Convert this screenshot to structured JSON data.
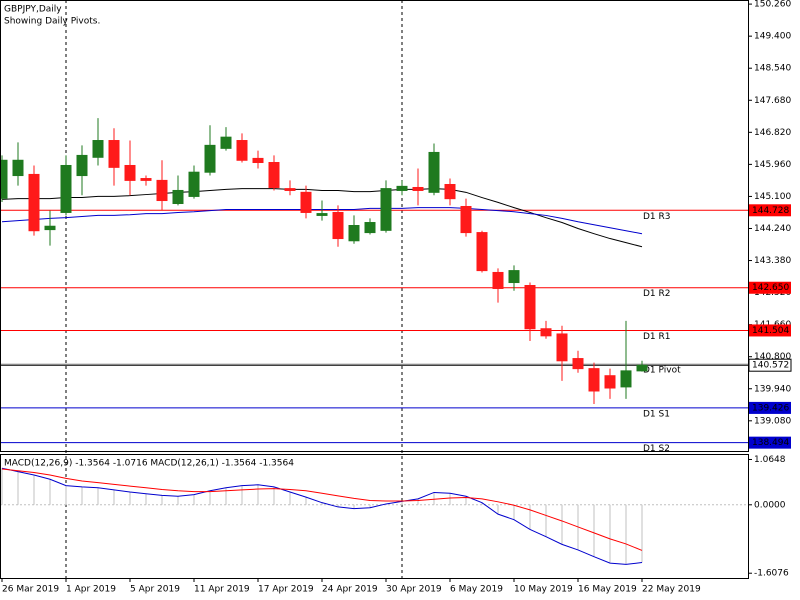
{
  "chart_data": [
    {
      "type": "candlestick",
      "title": "GBPJPY,Daily",
      "subtitle": "Showing Daily Pivots.",
      "categories": [
        "26 Mar 2019",
        null,
        null,
        null,
        "1 Apr 2019",
        null,
        null,
        null,
        "5 Apr 2019",
        null,
        null,
        null,
        "11 Apr 2019",
        null,
        null,
        null,
        "17 Apr 2019",
        null,
        null,
        null,
        "24 Apr 2019",
        null,
        null,
        null,
        "30 Apr 2019",
        null,
        null,
        null,
        "6 May 2019",
        null,
        null,
        null,
        "10 May 2019",
        null,
        null,
        null,
        "16 May 2019",
        null,
        null,
        null,
        "22 May 2019"
      ],
      "open": [
        145.05,
        145.66,
        145.69,
        144.21,
        144.67,
        145.66,
        146.15,
        146.6,
        145.93,
        145.58,
        145.53,
        144.91,
        145.1,
        145.75,
        146.39,
        146.6,
        146.12,
        146.01,
        145.31,
        145.21,
        144.59,
        144.67,
        143.91,
        144.13,
        144.19,
        145.26,
        145.34,
        145.21,
        145.42,
        144.83,
        144.13,
        143.06,
        142.79,
        142.71,
        141.55,
        141.41,
        140.75,
        140.48,
        140.29,
        139.99,
        140.42
      ],
      "high": [
        146.2,
        146.55,
        145.93,
        144.72,
        146.2,
        146.47,
        147.2,
        146.93,
        146.6,
        145.66,
        146.07,
        145.66,
        145.93,
        147.01,
        146.96,
        146.79,
        146.33,
        146.2,
        145.53,
        145.39,
        144.99,
        144.86,
        144.59,
        144.51,
        145.53,
        145.53,
        145.85,
        146.52,
        145.58,
        145.04,
        144.18,
        143.17,
        143.25,
        142.79,
        141.76,
        141.63,
        140.96,
        140.64,
        140.48,
        141.76,
        140.69
      ],
      "low": [
        144.95,
        145.39,
        144.05,
        143.78,
        144.59,
        145.13,
        145.93,
        145.39,
        145.13,
        145.39,
        144.72,
        144.86,
        145.04,
        145.66,
        146.33,
        146.01,
        145.85,
        145.26,
        145.13,
        144.51,
        144.45,
        143.75,
        143.83,
        144.08,
        144.13,
        145.13,
        144.86,
        145.13,
        144.86,
        144.02,
        143.06,
        142.25,
        142.57,
        141.22,
        141.28,
        140.15,
        140.37,
        139.53,
        139.67,
        139.67,
        140.4
      ],
      "close": [
        146.07,
        146.07,
        144.18,
        144.3,
        145.93,
        146.2,
        146.6,
        145.88,
        145.53,
        145.53,
        144.99,
        145.26,
        145.75,
        146.47,
        146.69,
        146.07,
        146.01,
        145.34,
        145.26,
        144.67,
        144.64,
        143.97,
        144.32,
        144.4,
        145.31,
        145.37,
        145.26,
        146.28,
        145.04,
        144.13,
        143.11,
        142.63,
        143.11,
        141.55,
        141.36,
        140.69,
        140.48,
        139.88,
        139.96,
        140.42,
        140.57
      ],
      "up_color": "#1f7a1f",
      "down_color": "#ff1a1a",
      "series": [
        {
          "color": "#000000",
          "values": [
            145.02,
            145.04,
            145.04,
            145.04,
            145.07,
            145.07,
            145.1,
            145.1,
            145.12,
            145.15,
            145.18,
            145.21,
            145.23,
            145.26,
            145.29,
            145.31,
            145.31,
            145.31,
            145.29,
            145.29,
            145.26,
            145.26,
            145.23,
            145.23,
            145.26,
            145.29,
            145.29,
            145.31,
            145.29,
            145.21,
            145.07,
            144.94,
            144.8,
            144.67,
            144.53,
            144.4,
            144.24,
            144.1,
            143.97,
            143.86,
            143.75
          ]
        },
        {
          "color": "#0000cd",
          "values": [
            144.42,
            144.45,
            144.48,
            144.51,
            144.53,
            144.56,
            144.59,
            144.59,
            144.61,
            144.64,
            144.64,
            144.67,
            144.69,
            144.72,
            144.75,
            144.75,
            144.75,
            144.75,
            144.75,
            144.75,
            144.75,
            144.75,
            144.75,
            144.78,
            144.78,
            144.78,
            144.8,
            144.8,
            144.8,
            144.78,
            144.75,
            144.72,
            144.69,
            144.64,
            144.59,
            144.51,
            144.42,
            144.34,
            144.26,
            144.18,
            144.1
          ]
        }
      ],
      "levels": [
        {
          "label": "D1 R3",
          "value": 144.728,
          "color": "#ff0000"
        },
        {
          "label": "D1 R2",
          "value": 142.65,
          "value_label": "142.650",
          "color": "#ff0000"
        },
        {
          "label": "D1 R1",
          "value": 141.504,
          "color": "#ff0000"
        },
        {
          "label": "D1 Pivot",
          "value": 140.6,
          "color": "#a0a0a0"
        },
        {
          "label": "D1 S1",
          "value": 139.426,
          "color": "#0000cd"
        },
        {
          "label": "D1 S2",
          "value": 138.494,
          "color": "#0000cd"
        }
      ],
      "last_price": 140.572,
      "ylim": [
        138.27,
        150.37
      ],
      "yticks": [
        {
          "value": 150.26,
          "label": "150.260"
        },
        {
          "value": 149.4,
          "label": "149.400"
        },
        {
          "value": 148.54,
          "label": "148.540"
        },
        {
          "value": 147.68,
          "label": "147.680"
        },
        {
          "value": 146.82,
          "label": "146.820"
        },
        {
          "value": 145.96,
          "label": "145.960"
        },
        {
          "value": 145.1,
          "label": "145.100"
        },
        {
          "value": 144.24,
          "label": "144.240"
        },
        {
          "value": 143.38,
          "label": "143.380"
        },
        {
          "value": 142.52,
          "label": "142.520"
        },
        {
          "value": 141.66,
          "label": "141.660"
        },
        {
          "value": 140.8,
          "label": "140.800"
        },
        {
          "value": 139.94,
          "label": "139.940"
        },
        {
          "value": 139.08,
          "label": "139.080"
        }
      ]
    },
    {
      "type": "macd",
      "title": "MACD(12,26,9) -1.3564 -1.0716 MACD(12,26,1) -1.3564 -1.3564",
      "main_line_color": "#0000cd",
      "series": [
        {
          "style": "histogram",
          "color": "#c0c0c0",
          "values": [
            0.86,
            0.78,
            0.7,
            0.6,
            0.45,
            0.42,
            0.4,
            0.35,
            0.3,
            0.26,
            0.22,
            0.2,
            0.24,
            0.33,
            0.4,
            0.45,
            0.47,
            0.42,
            0.3,
            0.18,
            0.05,
            -0.05,
            -0.09,
            -0.07,
            0.02,
            0.08,
            0.14,
            0.29,
            0.27,
            0.2,
            0.05,
            -0.22,
            -0.35,
            -0.58,
            -0.75,
            -0.93,
            -1.06,
            -1.22,
            -1.37,
            -1.4,
            -1.3564
          ]
        },
        {
          "style": "line",
          "color": "#ff0000",
          "values": [
            0.84,
            0.8,
            0.76,
            0.7,
            0.62,
            0.56,
            0.52,
            0.48,
            0.44,
            0.4,
            0.36,
            0.33,
            0.31,
            0.31,
            0.33,
            0.35,
            0.37,
            0.38,
            0.36,
            0.33,
            0.27,
            0.21,
            0.15,
            0.1,
            0.09,
            0.09,
            0.1,
            0.13,
            0.16,
            0.17,
            0.14,
            0.07,
            -0.01,
            -0.12,
            -0.25,
            -0.38,
            -0.52,
            -0.66,
            -0.8,
            -0.92,
            -1.0716
          ]
        }
      ],
      "ylim": [
        -1.72,
        1.17
      ],
      "yticks": [
        1.0648,
        {
          "value": 0,
          "label": "0.0000"
        },
        -1.6076
      ]
    }
  ]
}
